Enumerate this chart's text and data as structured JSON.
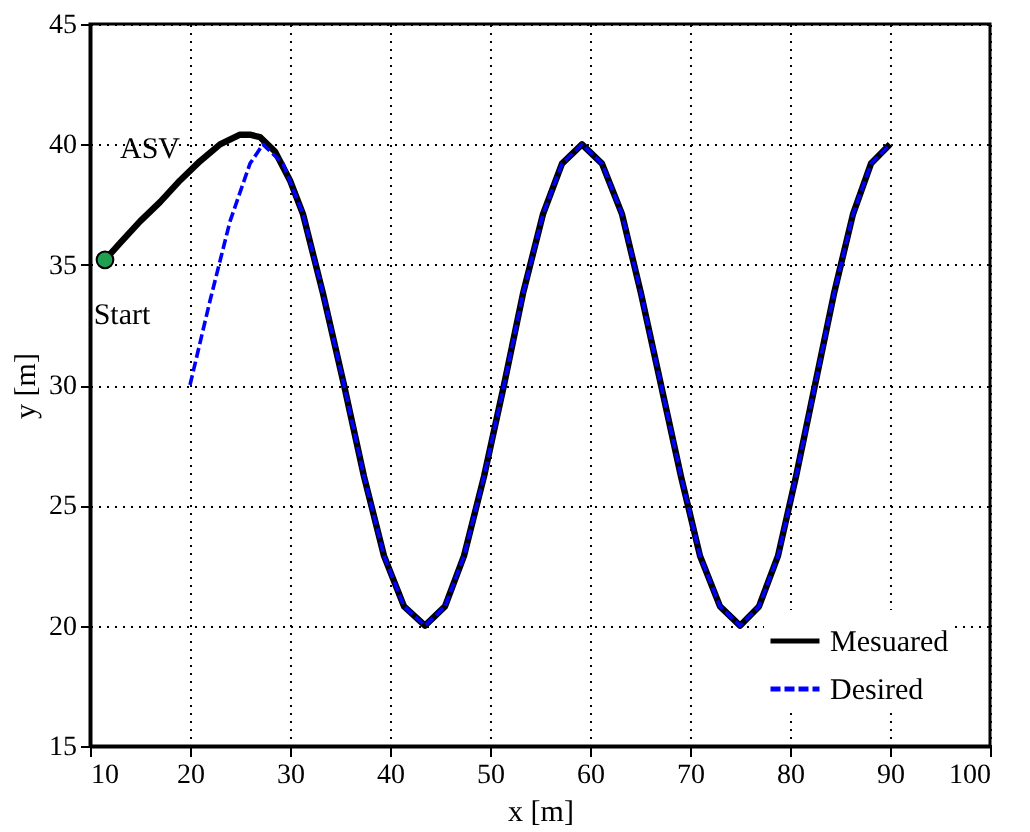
{
  "chart_data": {
    "type": "line",
    "xlabel": "x [m]",
    "ylabel": "y [m]",
    "xlim": [
      10,
      100
    ],
    "ylim": [
      15,
      45
    ],
    "xticks": [
      10,
      20,
      30,
      40,
      50,
      60,
      70,
      80,
      90,
      100
    ],
    "yticks": [
      15,
      20,
      25,
      30,
      35,
      40,
      45
    ],
    "grid": true,
    "legend": "bottom right",
    "annotations": [
      "ASV",
      "Start"
    ],
    "series": [
      {
        "name": "Mesuared",
        "color": "#000000",
        "line_style": "solid",
        "x": [
          11.5,
          13,
          15,
          17,
          19,
          21,
          23,
          25,
          26,
          27,
          28.5,
          30,
          31.3,
          33.3,
          35.4,
          37.4,
          39.4,
          41.4,
          43.5,
          45.5,
          47.4,
          49.4,
          51.4,
          53.3,
          55.3,
          57.2,
          59.2,
          61.2,
          63.2,
          65.1,
          67.1,
          69.1,
          71.0,
          73.0,
          75,
          76.9,
          78.8,
          80.6,
          82.5,
          84.4,
          86.3,
          88.1,
          90
        ],
        "values": [
          35.2,
          35.9,
          36.8,
          37.6,
          38.5,
          39.3,
          40,
          40.4,
          40.4,
          40.3,
          39.7,
          38.5,
          37.1,
          33.8,
          30,
          26.2,
          22.9,
          20.8,
          20,
          20.8,
          22.9,
          26.2,
          30,
          33.8,
          37.1,
          39.2,
          40,
          39.2,
          37.1,
          33.8,
          30,
          26.2,
          22.9,
          20.8,
          20,
          20.8,
          22.9,
          26.2,
          30,
          33.8,
          37.1,
          39.2,
          40
        ]
      },
      {
        "name": "Desired",
        "color": "#0000ff",
        "line_style": "dashed",
        "x": [
          20,
          22,
          24,
          26,
          27.3,
          29.3,
          31.3,
          33.3,
          35.4,
          37.4,
          39.4,
          41.4,
          43.5,
          45.5,
          47.4,
          49.4,
          51.4,
          53.3,
          55.3,
          57.2,
          59.2,
          61.2,
          63.2,
          65.1,
          67.1,
          69.1,
          71.0,
          73.0,
          75,
          76.9,
          78.8,
          80.6,
          82.5,
          84.4,
          86.3,
          88.1,
          90
        ],
        "values": [
          30,
          33.5,
          36.8,
          39.2,
          40,
          39.2,
          37.1,
          33.8,
          30,
          26.2,
          22.9,
          20.8,
          20,
          20.8,
          22.9,
          26.2,
          30,
          33.8,
          37.1,
          39.2,
          40,
          39.2,
          37.1,
          33.8,
          30,
          26.2,
          22.9,
          20.8,
          20,
          20.8,
          22.9,
          26.2,
          30,
          33.8,
          37.1,
          39.2,
          40
        ]
      },
      {
        "type": "scatter",
        "marker": "circle",
        "color": "#1fa050",
        "x": [
          11.5
        ],
        "values": [
          35.2
        ]
      }
    ]
  }
}
